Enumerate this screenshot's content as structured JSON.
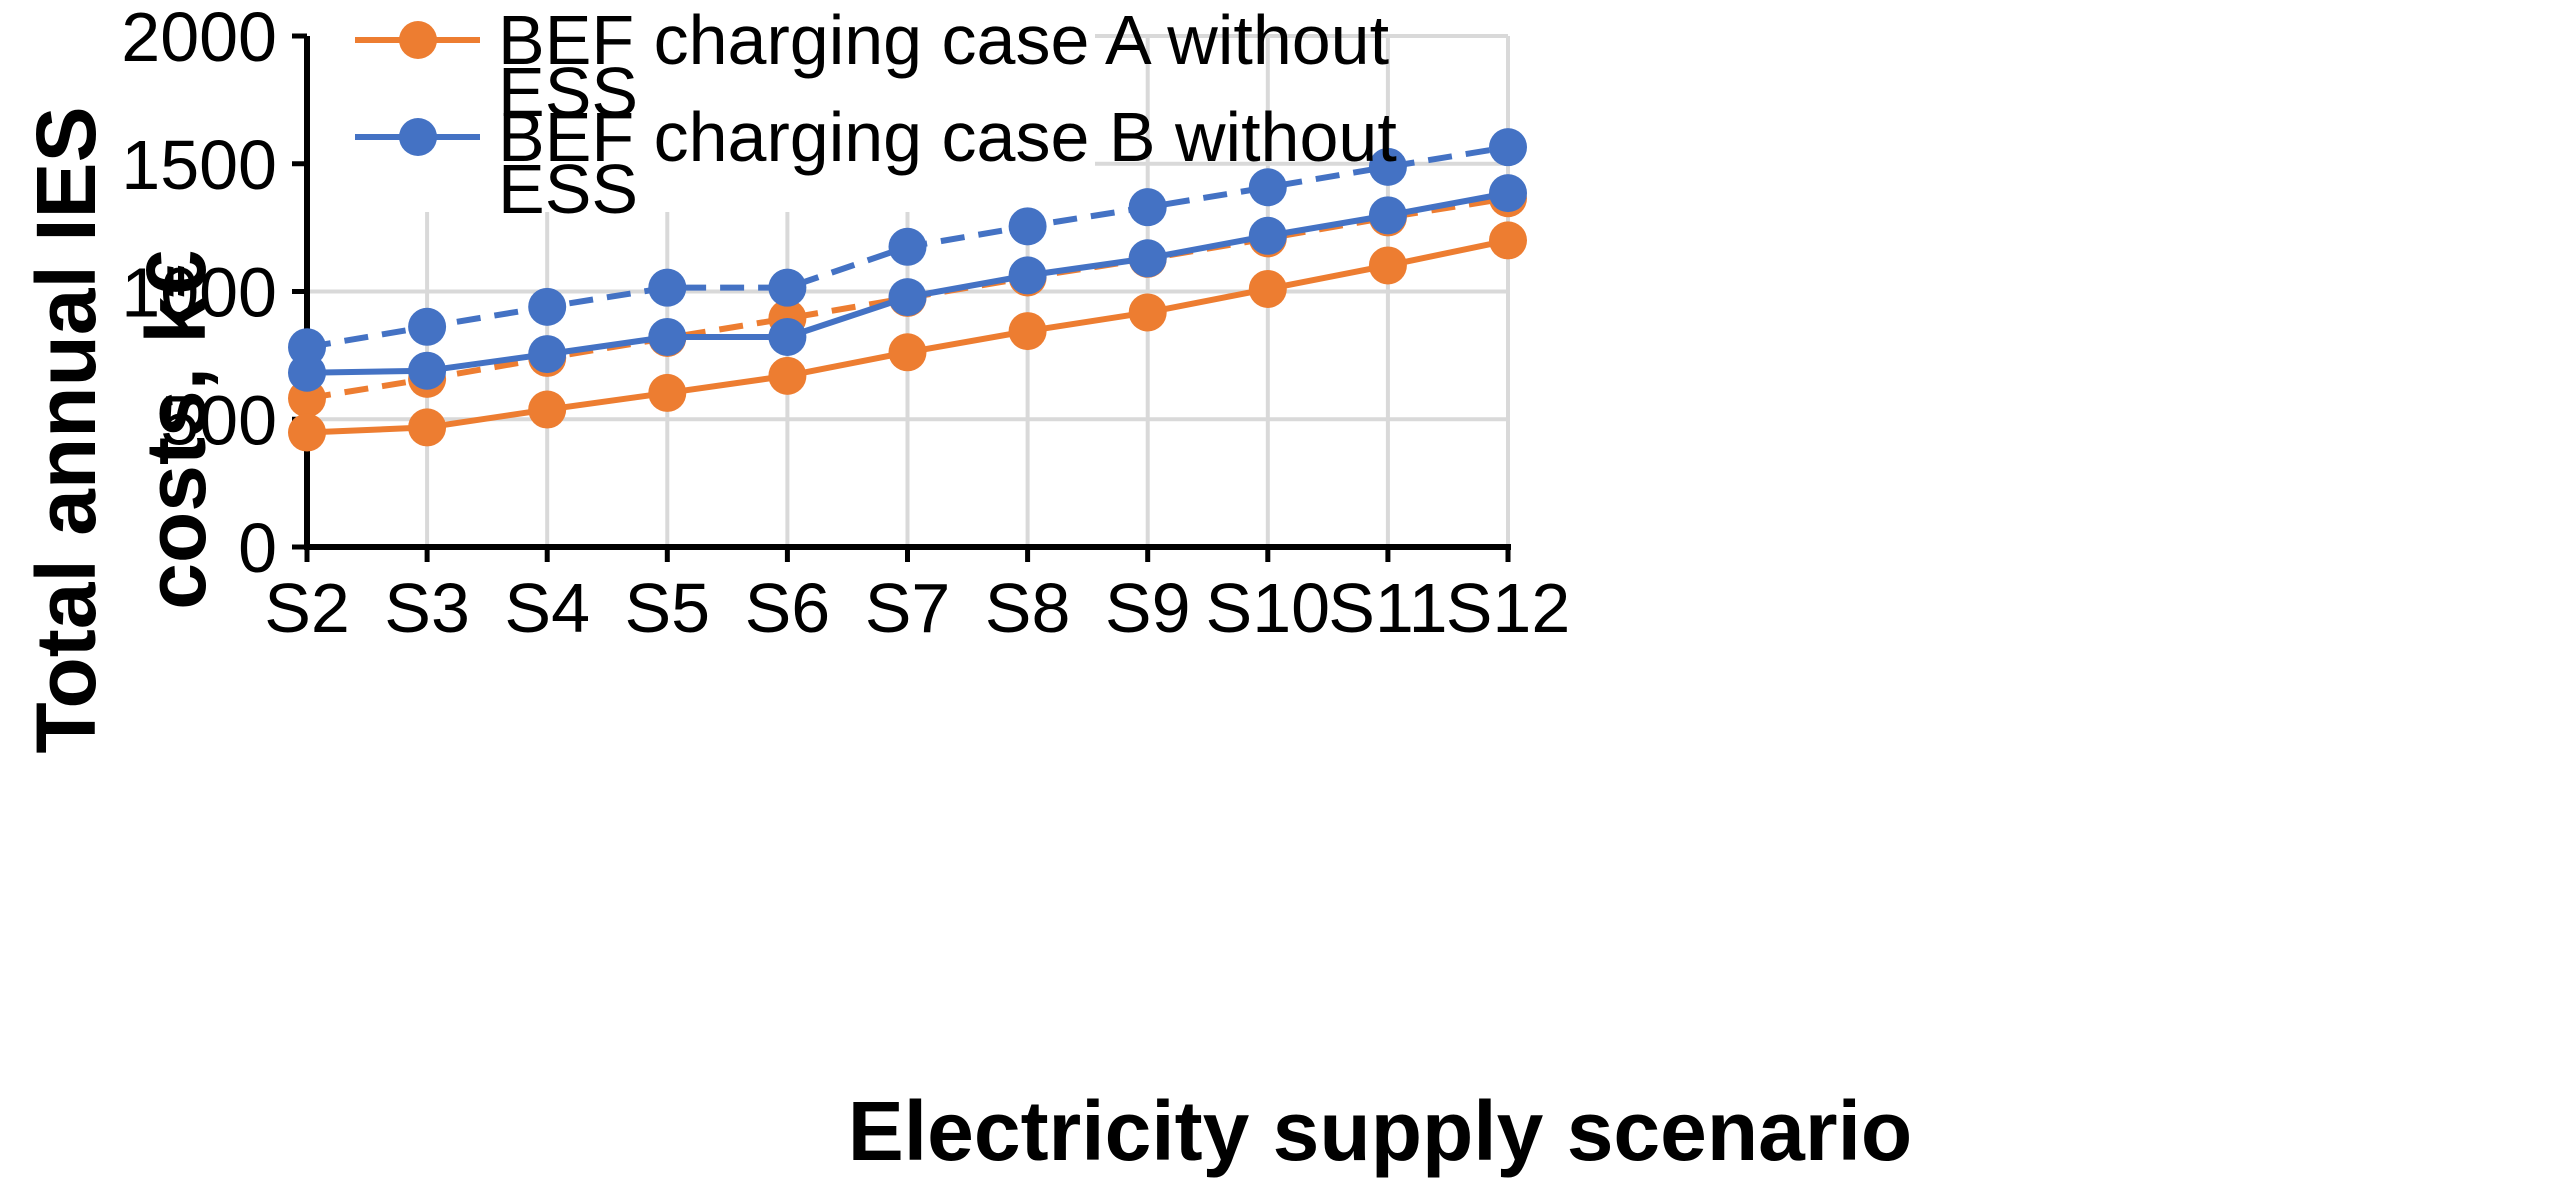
{
  "chart_data": {
    "type": "line",
    "title": "",
    "xlabel": "Electricity supply scenario",
    "ylabel": "Total annual IES costs, k€",
    "ylim": [
      0,
      2000
    ],
    "yticks": [
      0,
      500,
      1000,
      1500,
      2000
    ],
    "grid": true,
    "legend_position": "top-left",
    "categories": [
      "S2",
      "S3",
      "S4",
      "S5",
      "S6",
      "S7",
      "S8",
      "S9",
      "S10",
      "S11",
      "S12"
    ],
    "series": [
      {
        "name": "BEF charging case A without ESS",
        "color": "#ED7D31",
        "dash": "solid",
        "in_legend": true,
        "values": [
          448,
          468,
          538,
          603,
          670,
          762,
          845,
          918,
          1010,
          1102,
          1200
        ]
      },
      {
        "name": "BEF charging case B without ESS",
        "color": "#4472C4",
        "dash": "solid",
        "in_legend": true,
        "values": [
          682,
          690,
          755,
          822,
          822,
          978,
          1063,
          1130,
          1218,
          1298,
          1385
        ]
      },
      {
        "name": "",
        "color": "#ED7D31",
        "dash": "dashed",
        "in_legend": false,
        "values": [
          582,
          658,
          740,
          818,
          895,
          975,
          1055,
          1128,
          1208,
          1290,
          1365
        ]
      },
      {
        "name": "",
        "color": "#4472C4",
        "dash": "dashed",
        "in_legend": false,
        "values": [
          782,
          862,
          940,
          1015,
          1015,
          1175,
          1255,
          1330,
          1408,
          1488,
          1565
        ]
      }
    ]
  }
}
